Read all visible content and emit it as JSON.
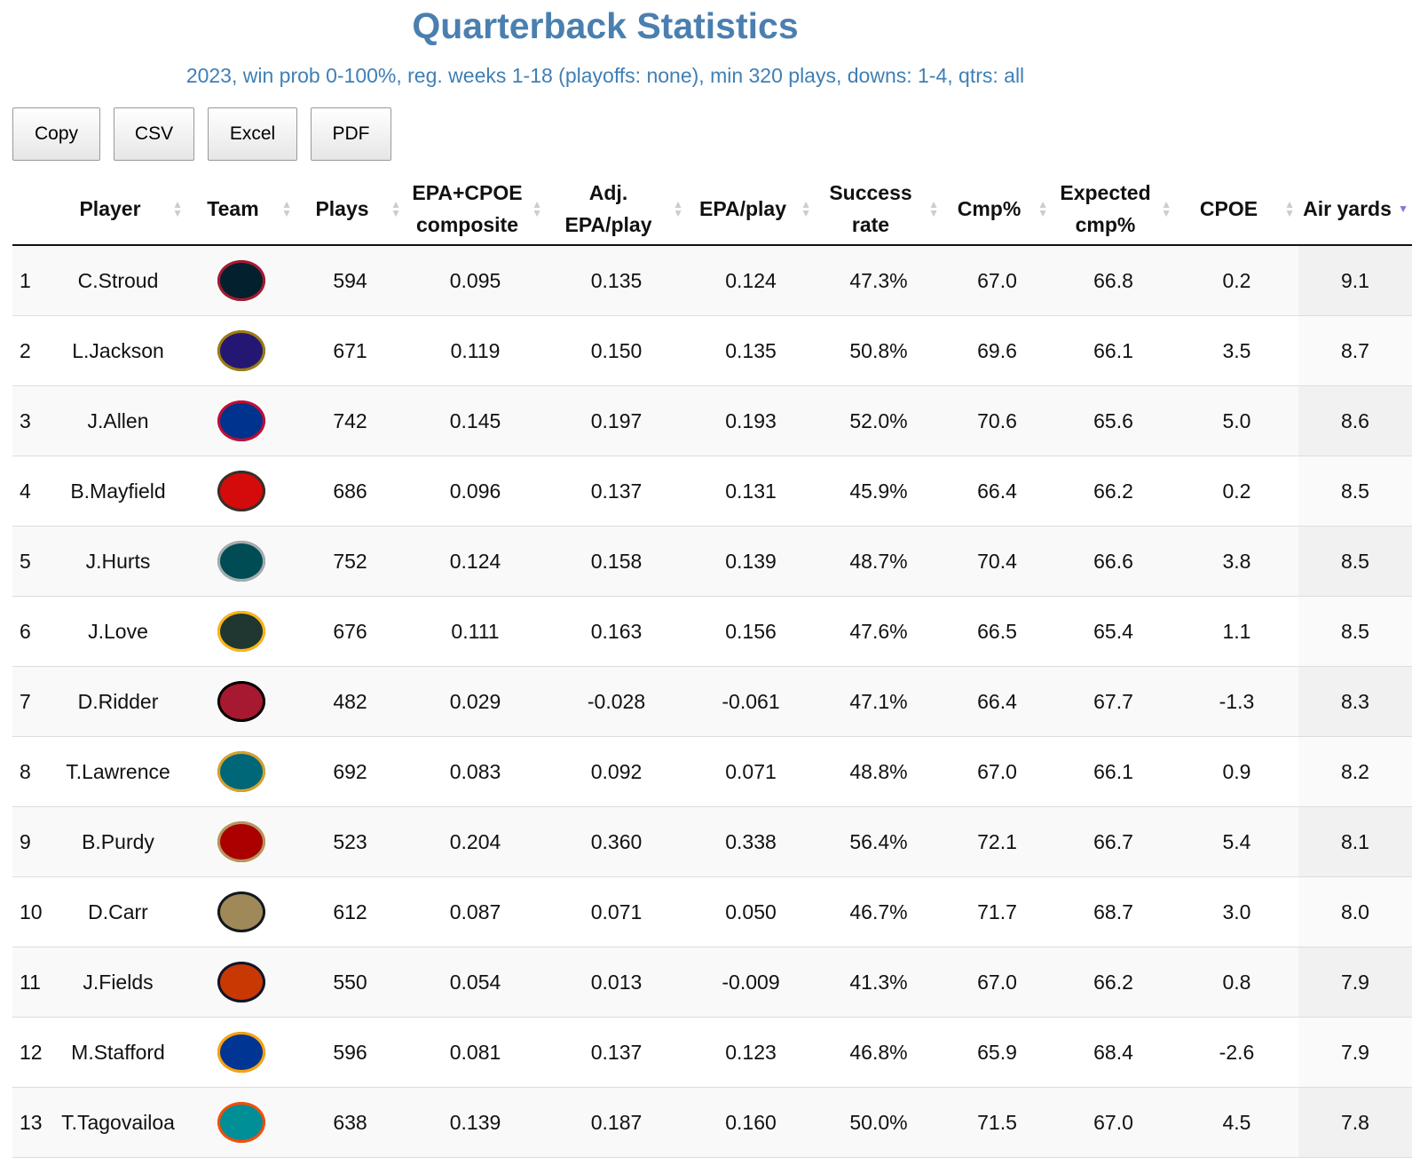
{
  "title": "Quarterback Statistics",
  "subtitle": "2023, win prob 0-100%, reg. weeks 1-18 (playoffs: none), min 320 plays, downs: 1-4, qtrs: all",
  "buttons": [
    "Copy",
    "CSV",
    "Excel",
    "PDF"
  ],
  "columns": [
    "",
    "Player",
    "Team",
    "Plays",
    "EPA+CPOE composite",
    "Adj. EPA/play",
    "EPA/play",
    "Success rate",
    "Cmp%",
    "Expected cmp%",
    "CPOE",
    "Air yards"
  ],
  "sorted_column": "Air yards",
  "sort_direction": "descending",
  "rows": [
    {
      "rank": "1",
      "player": "C.Stroud",
      "team": "HOU",
      "c1": "#03202f",
      "c2": "#a71930",
      "plays": "594",
      "comp": "0.095",
      "adj": "0.135",
      "epa": "0.124",
      "sr": "47.3%",
      "cmp": "67.0",
      "xcmp": "66.8",
      "cpoe": "0.2",
      "air": "9.1"
    },
    {
      "rank": "2",
      "player": "L.Jackson",
      "team": "BAL",
      "c1": "#241773",
      "c2": "#9e7c0c",
      "plays": "671",
      "comp": "0.119",
      "adj": "0.150",
      "epa": "0.135",
      "sr": "50.8%",
      "cmp": "69.6",
      "xcmp": "66.1",
      "cpoe": "3.5",
      "air": "8.7"
    },
    {
      "rank": "3",
      "player": "J.Allen",
      "team": "BUF",
      "c1": "#00338d",
      "c2": "#c60c30",
      "plays": "742",
      "comp": "0.145",
      "adj": "0.197",
      "epa": "0.193",
      "sr": "52.0%",
      "cmp": "70.6",
      "xcmp": "65.6",
      "cpoe": "5.0",
      "air": "8.6"
    },
    {
      "rank": "4",
      "player": "B.Mayfield",
      "team": "TB",
      "c1": "#d50a0a",
      "c2": "#34302b",
      "plays": "686",
      "comp": "0.096",
      "adj": "0.137",
      "epa": "0.131",
      "sr": "45.9%",
      "cmp": "66.4",
      "xcmp": "66.2",
      "cpoe": "0.2",
      "air": "8.5"
    },
    {
      "rank": "5",
      "player": "J.Hurts",
      "team": "PHI",
      "c1": "#004c54",
      "c2": "#a5acaf",
      "plays": "752",
      "comp": "0.124",
      "adj": "0.158",
      "epa": "0.139",
      "sr": "48.7%",
      "cmp": "70.4",
      "xcmp": "66.6",
      "cpoe": "3.8",
      "air": "8.5"
    },
    {
      "rank": "6",
      "player": "J.Love",
      "team": "GB",
      "c1": "#203731",
      "c2": "#ffb612",
      "plays": "676",
      "comp": "0.111",
      "adj": "0.163",
      "epa": "0.156",
      "sr": "47.6%",
      "cmp": "66.5",
      "xcmp": "65.4",
      "cpoe": "1.1",
      "air": "8.5"
    },
    {
      "rank": "7",
      "player": "D.Ridder",
      "team": "ATL",
      "c1": "#a71930",
      "c2": "#000000",
      "plays": "482",
      "comp": "0.029",
      "adj": "-0.028",
      "epa": "-0.061",
      "sr": "47.1%",
      "cmp": "66.4",
      "xcmp": "67.7",
      "cpoe": "-1.3",
      "air": "8.3"
    },
    {
      "rank": "8",
      "player": "T.Lawrence",
      "team": "JAX",
      "c1": "#006778",
      "c2": "#d7a22a",
      "plays": "692",
      "comp": "0.083",
      "adj": "0.092",
      "epa": "0.071",
      "sr": "48.8%",
      "cmp": "67.0",
      "xcmp": "66.1",
      "cpoe": "0.9",
      "air": "8.2"
    },
    {
      "rank": "9",
      "player": "B.Purdy",
      "team": "SF",
      "c1": "#aa0000",
      "c2": "#b3995d",
      "plays": "523",
      "comp": "0.204",
      "adj": "0.360",
      "epa": "0.338",
      "sr": "56.4%",
      "cmp": "72.1",
      "xcmp": "66.7",
      "cpoe": "5.4",
      "air": "8.1"
    },
    {
      "rank": "10",
      "player": "D.Carr",
      "team": "NO",
      "c1": "#9f8958",
      "c2": "#101820",
      "plays": "612",
      "comp": "0.087",
      "adj": "0.071",
      "epa": "0.050",
      "sr": "46.7%",
      "cmp": "71.7",
      "xcmp": "68.7",
      "cpoe": "3.0",
      "air": "8.0"
    },
    {
      "rank": "11",
      "player": "J.Fields",
      "team": "CHI",
      "c1": "#c83803",
      "c2": "#0b162a",
      "plays": "550",
      "comp": "0.054",
      "adj": "0.013",
      "epa": "-0.009",
      "sr": "41.3%",
      "cmp": "67.0",
      "xcmp": "66.2",
      "cpoe": "0.8",
      "air": "7.9"
    },
    {
      "rank": "12",
      "player": "M.Stafford",
      "team": "LA",
      "c1": "#003594",
      "c2": "#ffa300",
      "plays": "596",
      "comp": "0.081",
      "adj": "0.137",
      "epa": "0.123",
      "sr": "46.8%",
      "cmp": "65.9",
      "xcmp": "68.4",
      "cpoe": "-2.6",
      "air": "7.9"
    },
    {
      "rank": "13",
      "player": "T.Tagovailoa",
      "team": "MIA",
      "c1": "#008e97",
      "c2": "#fc4c02",
      "plays": "638",
      "comp": "0.139",
      "adj": "0.187",
      "epa": "0.160",
      "sr": "50.0%",
      "cmp": "71.5",
      "xcmp": "67.0",
      "cpoe": "4.5",
      "air": "7.8"
    }
  ]
}
